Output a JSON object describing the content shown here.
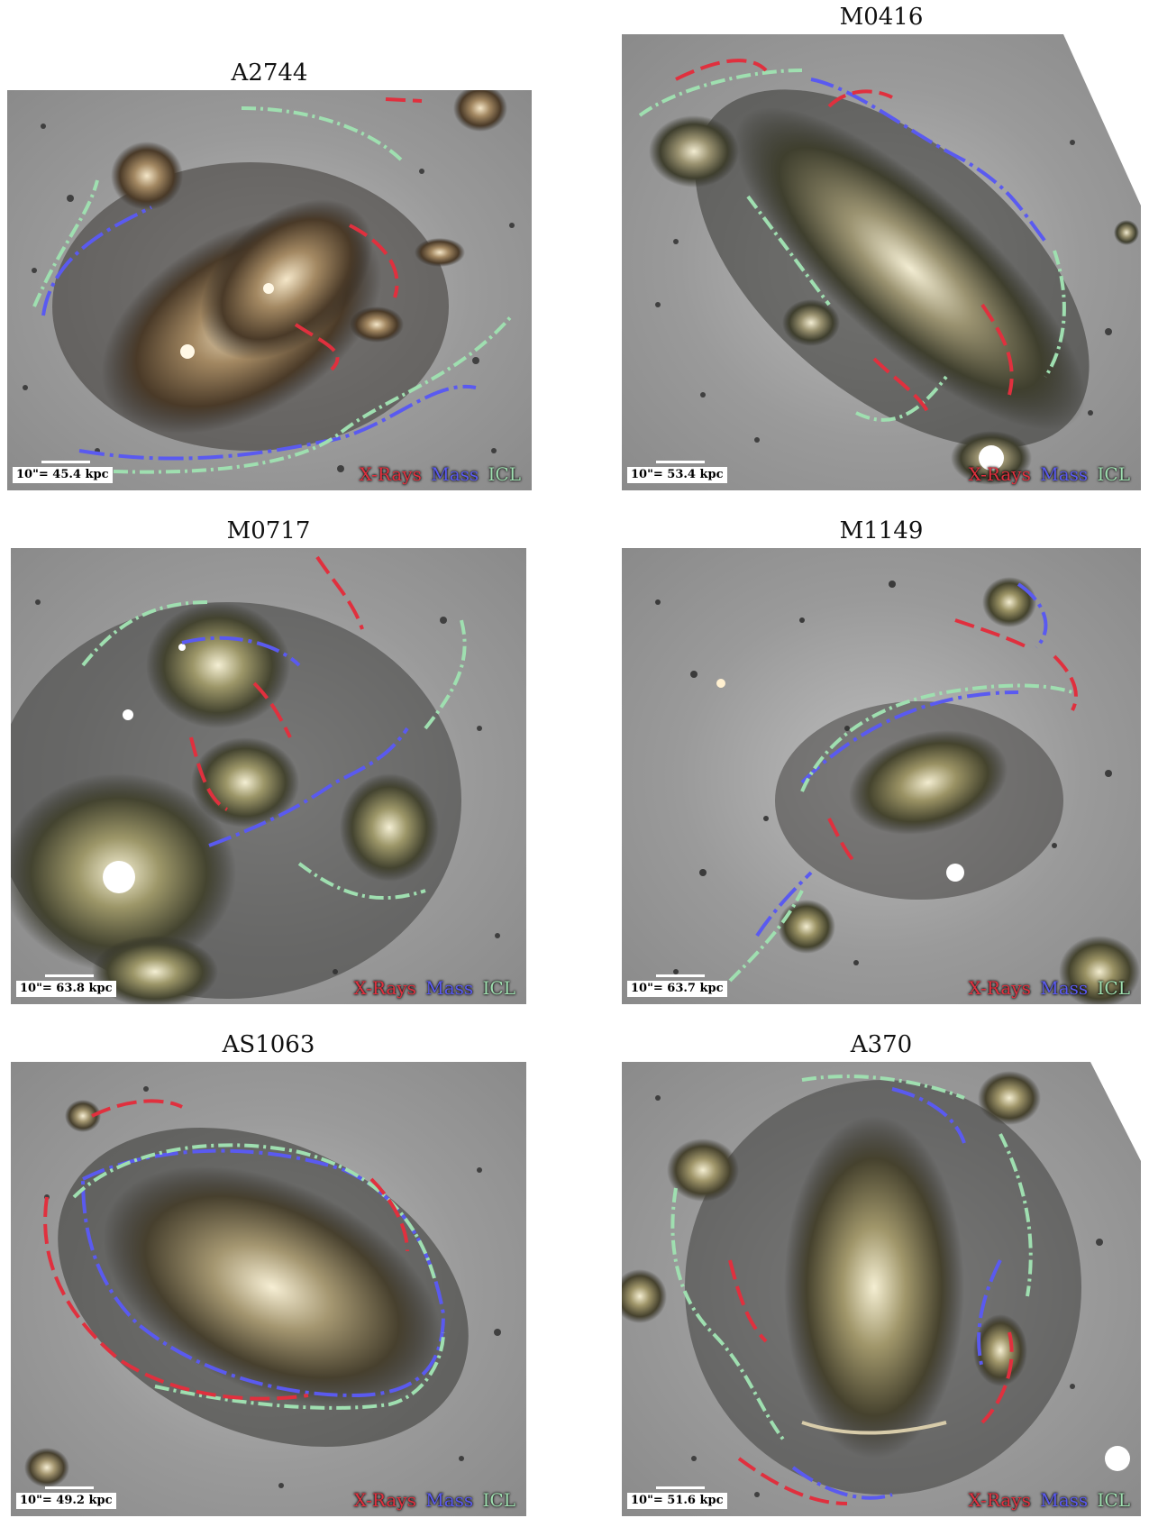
{
  "legend": {
    "xrays_label": "X-Rays",
    "mass_label": "Mass",
    "icl_label": "ICL",
    "xrays_color": "#e0303e",
    "mass_color": "#5a5af0",
    "icl_color": "#9fdfb0"
  },
  "panels": [
    {
      "title": "A2744",
      "scale": "10\"= 45.4 kpc"
    },
    {
      "title": "M0416",
      "scale": "10\"= 53.4 kpc"
    },
    {
      "title": "M0717",
      "scale": "10\"= 63.8 kpc"
    },
    {
      "title": "M1149",
      "scale": "10\"= 63.7 kpc"
    },
    {
      "title": "AS1063",
      "scale": "10\"= 49.2 kpc"
    },
    {
      "title": "A370",
      "scale": "10\"= 51.6 kpc"
    }
  ]
}
